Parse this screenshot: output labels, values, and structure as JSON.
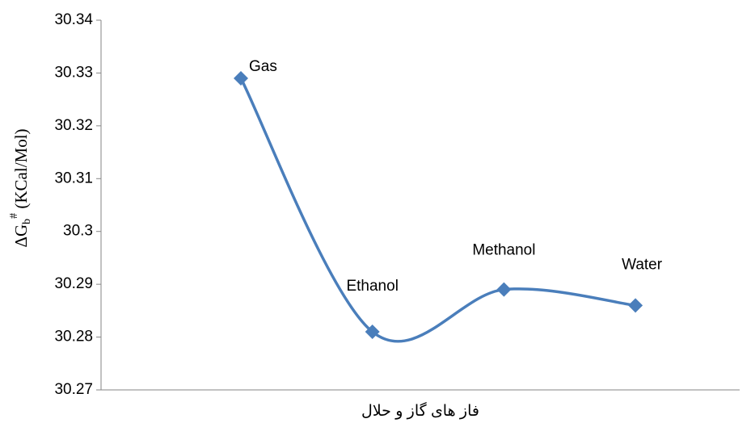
{
  "chart_data": {
    "type": "line",
    "ylabel": [
      "ΔG",
      "b",
      "#",
      " (KCal/Mol)"
    ],
    "xlabel": "فاز های گاز و حلال",
    "categories": [
      "Gas",
      "Ethanol",
      "Methanol",
      "Water"
    ],
    "series": [
      {
        "color": "#4a7ebb",
        "values": [
          30.329,
          30.281,
          30.289,
          30.286
        ]
      }
    ],
    "ylim": [
      30.27,
      30.34
    ],
    "yticks": [
      30.27,
      30.28,
      30.29,
      30.3,
      30.31,
      30.32,
      30.33,
      30.34
    ],
    "smooth": true,
    "marker": "diamond",
    "grid": false
  }
}
